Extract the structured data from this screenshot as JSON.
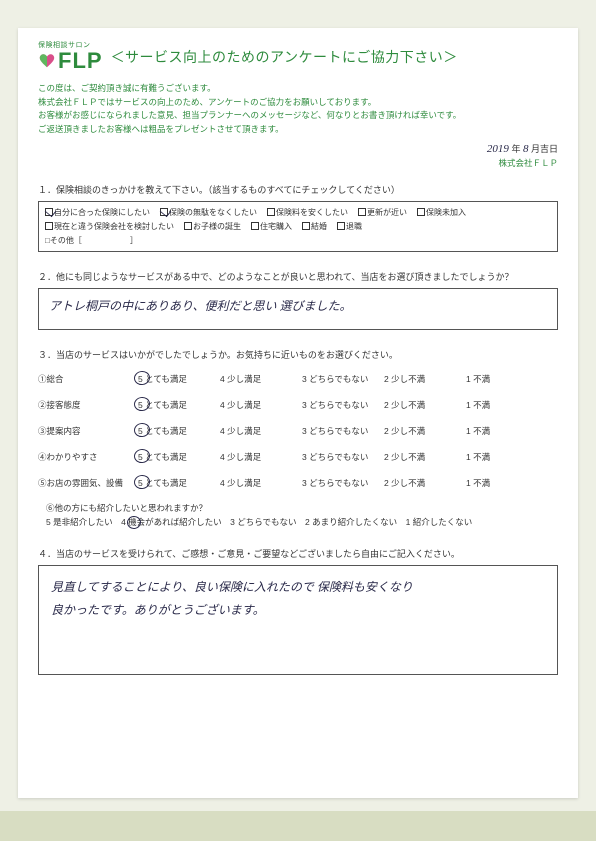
{
  "logo": {
    "tagline": "保険相談サロン",
    "brand": "FLP"
  },
  "header_title": "＜サービス向上のためのアンケートにご協力下さい＞",
  "intro": {
    "l1": "この度は、ご契約頂き誠に有難うございます。",
    "l2": "株式会社ＦＬＰではサービスの向上のため、アンケートのご協力をお願いしております。",
    "l3": "お客様がお感じになられました意見、担当プランナーへのメッセージなど、何なりとお書き頂ければ幸いです。",
    "l4": "ご返送頂きましたお客様へは粗品をプレゼントさせて頂きます。"
  },
  "date": {
    "year_hand": "2019",
    "year_unit": "年",
    "month_hand": "8",
    "month_unit": "月吉日"
  },
  "company": "株式会社ＦＬＰ",
  "q1": {
    "heading": "１．保険相談のきっかけを教えて下さい。（該当するものすべてにチェックしてください）",
    "items": [
      {
        "label": "自分に合った保険にしたい",
        "checked": true
      },
      {
        "label": "保険の無駄をなくしたい",
        "checked": true
      },
      {
        "label": "保険料を安くしたい",
        "checked": false
      },
      {
        "label": "更新が近い",
        "checked": false
      },
      {
        "label": "保険未加入",
        "checked": false
      },
      {
        "label": "現在と違う保険会社を検討したい",
        "checked": false
      },
      {
        "label": "お子様の誕生",
        "checked": false
      },
      {
        "label": "住宅購入",
        "checked": false
      },
      {
        "label": "結婚",
        "checked": false
      },
      {
        "label": "退職",
        "checked": false
      }
    ],
    "other": "その他［　　　　　　］"
  },
  "q2": {
    "heading": "２．他にも同じようなサービスがある中で、どのようなことが良いと思われて、当店をお選び頂きましたでしょうか？",
    "answer": "アトレ桐戸の中にありあり、便利だと思い 選びました。"
  },
  "q3": {
    "heading": "３．当店のサービスはいかがでしたでしょうか。お気持ちに近いものをお選びください。",
    "rows": [
      {
        "label": "①総合",
        "sel": 0
      },
      {
        "label": "②接客態度",
        "sel": 0
      },
      {
        "label": "③提案内容",
        "sel": 0
      },
      {
        "label": "④わかりやすさ",
        "sel": 0
      },
      {
        "label": "⑤お店の雰囲気、設備",
        "sel": 0
      }
    ],
    "opts": [
      "5 とても満足",
      "4 少し満足",
      "3 どちらでもない",
      "2 少し不満",
      "1 不満"
    ],
    "q6_label": "⑥他の方にも紹介したいと思われますか？",
    "q6_opts": "5 是非紹介したい　4 機会があれば紹介したい　3 どちらでもない　2 あまり紹介したくない　1 紹介したくない"
  },
  "q4": {
    "heading": "４．当店のサービスを受けられて、ご感想・ご意見・ご要望などございましたら自由にご記入ください。",
    "answer_l1": "見直してすることにより、良い保険に入れたので 保険料も安くなり",
    "answer_l2": "良かったです。ありがとうございます。"
  }
}
